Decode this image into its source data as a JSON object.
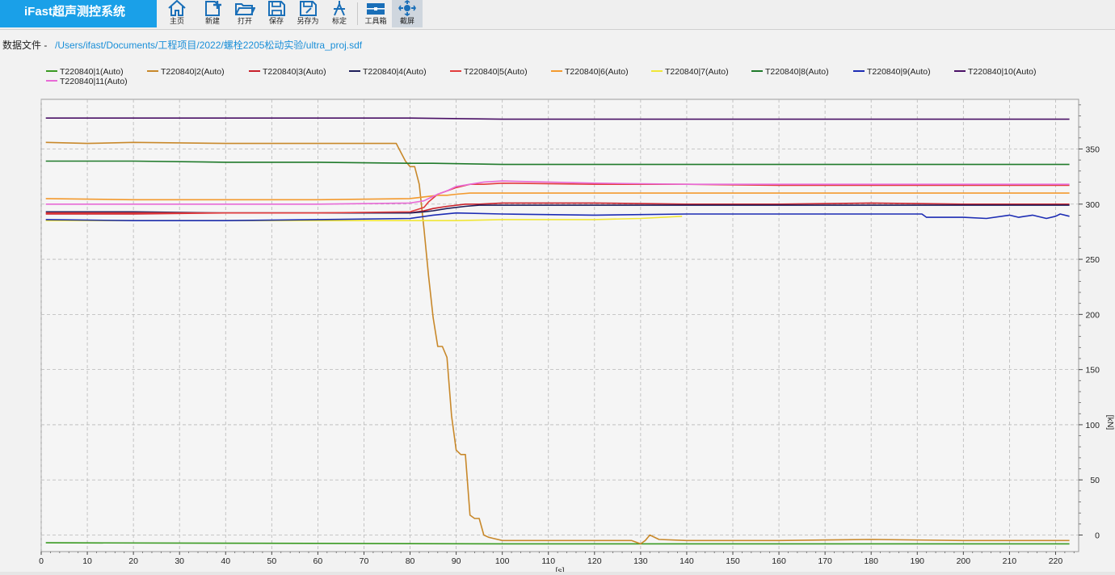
{
  "app": {
    "title": "iFast超声测控系统"
  },
  "toolbar": {
    "items": [
      {
        "label": "主页",
        "icon": "home-icon"
      },
      {
        "label": "新建",
        "icon": "new-file-icon"
      },
      {
        "label": "打开",
        "icon": "open-folder-icon"
      },
      {
        "label": "保存",
        "icon": "save-icon"
      },
      {
        "label": "另存为",
        "icon": "save-as-icon"
      },
      {
        "label": "标定",
        "icon": "calibrate-icon"
      },
      {
        "label": "工具箱",
        "icon": "toolbox-icon"
      },
      {
        "label": "截屏",
        "icon": "screenshot-icon"
      }
    ]
  },
  "file": {
    "label": "数据文件 -",
    "path": "/Users/ifast/Documents/工程项目/2022/螺栓2205松动实验/ultra_proj.sdf"
  },
  "colors": {
    "brand": "#1aa0e8",
    "accent_link": "#1a8fd8"
  },
  "chart_data": {
    "type": "line",
    "title": "",
    "xlabel": "[s]",
    "ylabel": "[kN]",
    "xlim": [
      0,
      225
    ],
    "ylim": [
      -15,
      395
    ],
    "xticks": [
      "0",
      "10",
      "20",
      "30",
      "40",
      "50",
      "60",
      "70",
      "80",
      "90",
      "100",
      "110",
      "120",
      "130",
      "140",
      "150",
      "160",
      "170",
      "180",
      "190",
      "200",
      "210",
      "220"
    ],
    "yticks": [
      "0",
      "50",
      "100",
      "150",
      "200",
      "250",
      "300",
      "350"
    ],
    "grid": true,
    "legend_position": "top",
    "series": [
      {
        "name": "T220840|1(Auto)",
        "color": "#3a9a22",
        "x": [
          1,
          100,
          223
        ],
        "y": [
          -7,
          -8,
          -8
        ]
      },
      {
        "name": "T220840|2(Auto)",
        "color": "#c8882a",
        "x": [
          1,
          10,
          20,
          40,
          60,
          70,
          77,
          79,
          80,
          81,
          82,
          83,
          84,
          85,
          86,
          87,
          88,
          89,
          90,
          91,
          92,
          93,
          94,
          95,
          96,
          97,
          98,
          100,
          110,
          120,
          128,
          130,
          131,
          132,
          134,
          140,
          160,
          180,
          200,
          223
        ],
        "y": [
          356,
          355,
          356,
          355,
          355,
          355,
          355,
          339,
          334,
          334,
          318,
          278,
          235,
          197,
          171,
          171,
          161,
          108,
          77,
          73,
          73,
          18,
          15,
          15,
          0,
          -2,
          -3,
          -5,
          -5,
          -5,
          -5,
          -8,
          -5,
          0,
          -4,
          -5,
          -5,
          -4,
          -5,
          -5
        ]
      },
      {
        "name": "T220840|3(Auto)",
        "color": "#c8202a",
        "x": [
          1,
          20,
          40,
          60,
          80,
          83,
          85,
          88,
          92,
          95,
          100,
          120,
          140,
          160,
          180,
          200,
          223
        ],
        "y": [
          291,
          291,
          292,
          292,
          292,
          294,
          296,
          298,
          300,
          300,
          301,
          301,
          300,
          300,
          301,
          300,
          300
        ]
      },
      {
        "name": "T220840|4(Auto)",
        "color": "#1e1e5a",
        "x": [
          1,
          20,
          40,
          60,
          80,
          83,
          85,
          88,
          92,
          95,
          100,
          120,
          140,
          160,
          180,
          200,
          223
        ],
        "y": [
          293,
          293,
          292,
          292,
          292,
          293,
          294,
          296,
          298,
          299,
          299,
          299,
          299,
          299,
          299,
          299,
          299
        ]
      },
      {
        "name": "T220840|5(Auto)",
        "color": "#e23c3c",
        "x": [
          1,
          20,
          40,
          60,
          80,
          83,
          84,
          86,
          88,
          90,
          93,
          96,
          100,
          120,
          140,
          160,
          180,
          200,
          223
        ],
        "y": [
          292,
          292,
          292,
          292,
          293,
          297,
          302,
          309,
          312,
          315,
          318,
          318,
          319,
          318,
          318,
          317,
          317,
          317,
          317
        ]
      },
      {
        "name": "T220840|6(Auto)",
        "color": "#f39a2e",
        "x": [
          1,
          20,
          40,
          60,
          80,
          82,
          84,
          86,
          88,
          90,
          93,
          96,
          100,
          120,
          140,
          160,
          180,
          200,
          223
        ],
        "y": [
          305,
          304,
          304,
          304,
          305,
          306,
          307,
          308,
          308,
          309,
          310,
          310,
          310,
          310,
          310,
          310,
          310,
          310,
          310
        ]
      },
      {
        "name": "T220840|7(Auto)",
        "color": "#f0e636",
        "x": [
          1,
          20,
          40,
          60,
          70,
          80,
          90,
          100,
          110,
          120,
          130,
          139
        ],
        "y": [
          285,
          285,
          285,
          285,
          285,
          285,
          285,
          286,
          286,
          286,
          287,
          289
        ]
      },
      {
        "name": "T220840|8(Auto)",
        "color": "#1f7a2a",
        "x": [
          1,
          20,
          40,
          60,
          80,
          85,
          100,
          140,
          180,
          223
        ],
        "y": [
          339,
          339,
          338,
          338,
          337,
          337,
          336,
          336,
          336,
          336
        ]
      },
      {
        "name": "T220840|9(Auto)",
        "color": "#1c2cb4",
        "x": [
          1,
          20,
          40,
          60,
          80,
          85,
          90,
          100,
          120,
          140,
          160,
          180,
          191,
          192,
          200,
          205,
          210,
          212,
          215,
          218,
          220,
          221,
          223
        ],
        "y": [
          286,
          285,
          285,
          286,
          287,
          290,
          292,
          291,
          290,
          291,
          291,
          291,
          291,
          288,
          288,
          287,
          290,
          288,
          290,
          287,
          289,
          291,
          289
        ]
      },
      {
        "name": "T220840|10(Auto)",
        "color": "#4a1066",
        "x": [
          1,
          20,
          40,
          60,
          80,
          100,
          120,
          140,
          160,
          180,
          200,
          223
        ],
        "y": [
          378,
          378,
          378,
          378,
          378,
          377,
          377,
          377,
          377,
          377,
          377,
          377
        ]
      },
      {
        "name": "T220840|11(Auto)",
        "color": "#e86ad6",
        "x": [
          1,
          20,
          40,
          60,
          80,
          83,
          84,
          86,
          88,
          90,
          93,
          96,
          100,
          110,
          120,
          140,
          160,
          180,
          200,
          223
        ],
        "y": [
          300,
          300,
          300,
          300,
          301,
          303,
          305,
          309,
          312,
          316,
          318,
          320,
          321,
          320,
          319,
          318,
          318,
          318,
          318,
          318
        ]
      }
    ]
  }
}
